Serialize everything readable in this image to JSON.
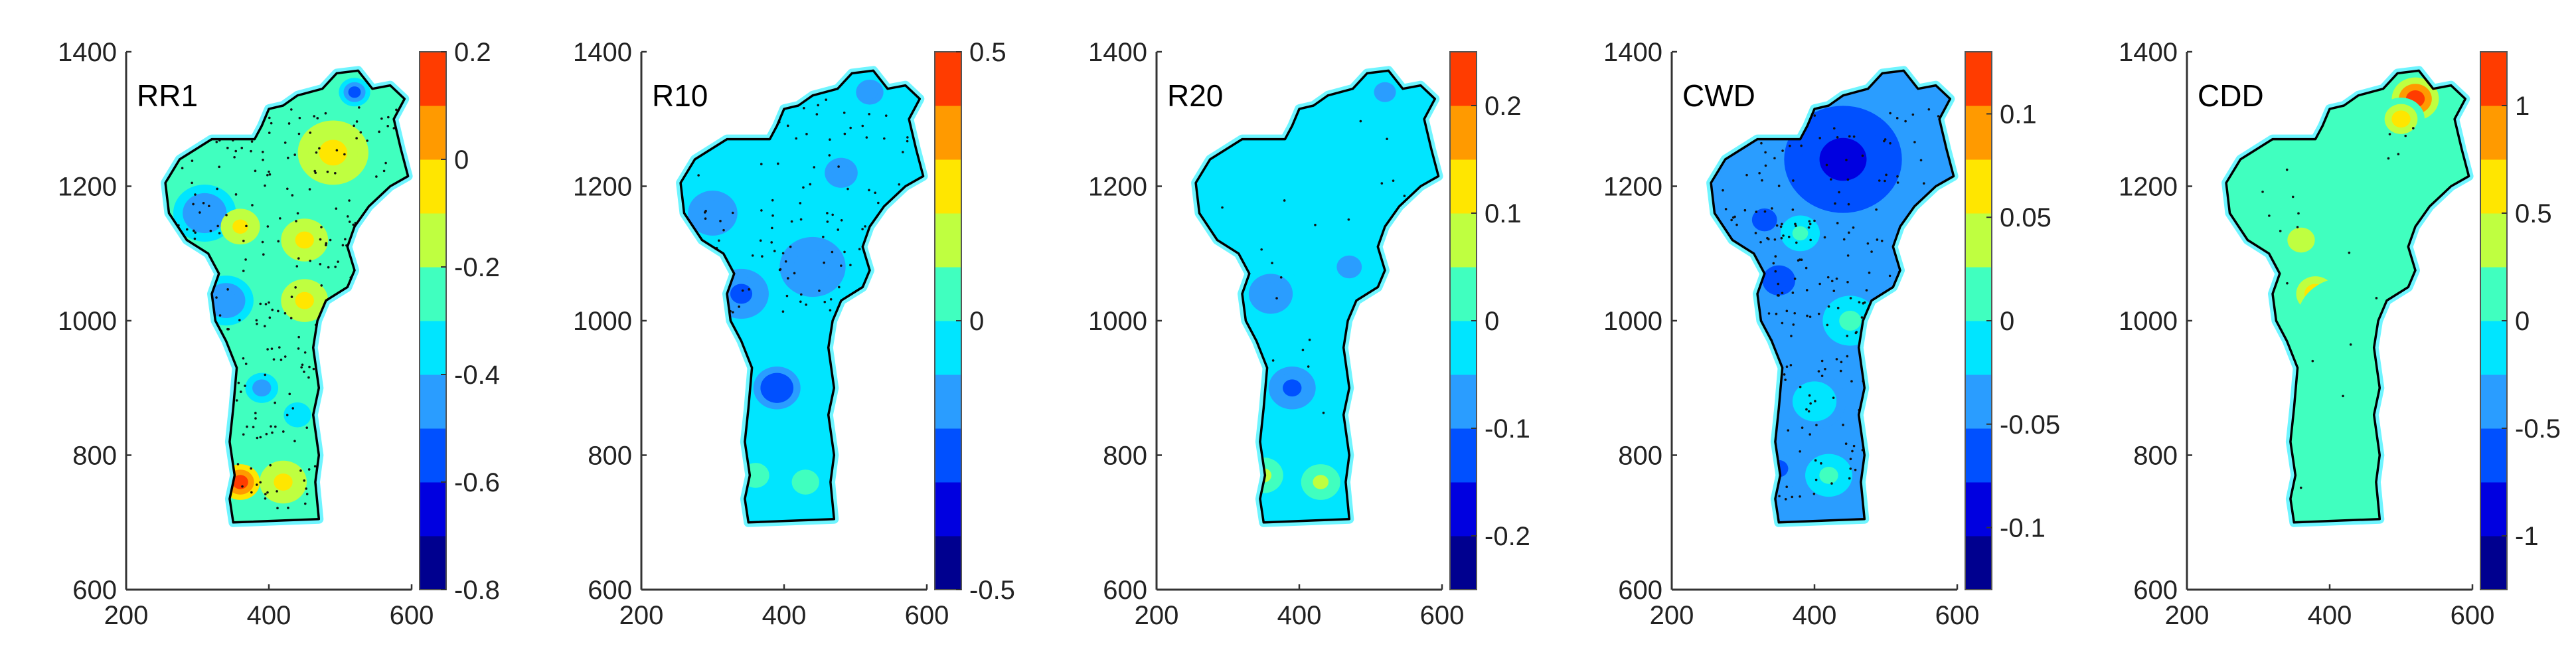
{
  "chart_data": [
    {
      "type": "heatmap",
      "title": "RR1",
      "x_ticks": [
        200,
        400,
        600
      ],
      "y_ticks": [
        600,
        800,
        1000,
        1200,
        1400
      ],
      "xlim": [
        200,
        600
      ],
      "ylim": [
        600,
        1400
      ],
      "colorbar": {
        "min": -0.8,
        "max": 0.2,
        "tick_values": [
          0.2,
          0,
          -0.2,
          -0.4,
          -0.6,
          -0.8
        ],
        "tick_labels": [
          "0.2",
          "0",
          "-0.2",
          "-0.4",
          "-0.6",
          "-0.8"
        ]
      },
      "background_value": -0.22,
      "stippling": "dense",
      "features": [
        {
          "x": 310,
          "y": 1160,
          "r": 40,
          "value": -0.5
        },
        {
          "x": 490,
          "y": 1250,
          "r": 45,
          "value": -0.05
        },
        {
          "x": 360,
          "y": 1140,
          "r": 25,
          "value": -0.1
        },
        {
          "x": 450,
          "y": 1120,
          "r": 30,
          "value": -0.1
        },
        {
          "x": 340,
          "y": 1030,
          "r": 35,
          "value": -0.5
        },
        {
          "x": 450,
          "y": 1030,
          "r": 30,
          "value": -0.05
        },
        {
          "x": 390,
          "y": 900,
          "r": 30,
          "value": -0.45
        },
        {
          "x": 440,
          "y": 860,
          "r": 25,
          "value": -0.4
        },
        {
          "x": 360,
          "y": 760,
          "r": 25,
          "value": 0.15
        },
        {
          "x": 420,
          "y": 760,
          "r": 30,
          "value": -0.05
        },
        {
          "x": 520,
          "y": 1340,
          "r": 20,
          "value": -0.55
        }
      ]
    },
    {
      "type": "heatmap",
      "title": "R10",
      "x_ticks": [
        200,
        400,
        600
      ],
      "y_ticks": [
        600,
        800,
        1000,
        1200,
        1400
      ],
      "xlim": [
        200,
        600
      ],
      "ylim": [
        600,
        1400
      ],
      "colorbar": {
        "min": -0.5,
        "max": 0.5,
        "tick_values": [
          0.5,
          0,
          -0.5
        ],
        "tick_labels": [
          "0.5",
          "0",
          "-0.5"
        ]
      },
      "background_value": -0.05,
      "stippling": "partial",
      "features": [
        {
          "x": 300,
          "y": 1160,
          "r": 45,
          "value": -0.15
        },
        {
          "x": 440,
          "y": 1080,
          "r": 60,
          "value": -0.15
        },
        {
          "x": 390,
          "y": 900,
          "r": 30,
          "value": -0.3
        },
        {
          "x": 340,
          "y": 1040,
          "r": 35,
          "value": -0.25
        },
        {
          "x": 480,
          "y": 1220,
          "r": 30,
          "value": -0.15
        },
        {
          "x": 520,
          "y": 1340,
          "r": 25,
          "value": -0.2
        },
        {
          "x": 360,
          "y": 770,
          "r": 25,
          "value": 0.08
        },
        {
          "x": 430,
          "y": 760,
          "r": 25,
          "value": 0.05
        }
      ]
    },
    {
      "type": "heatmap",
      "title": "R20",
      "x_ticks": [
        200,
        400,
        600
      ],
      "y_ticks": [
        600,
        800,
        1000,
        1200,
        1400
      ],
      "xlim": [
        200,
        600
      ],
      "ylim": [
        600,
        1400
      ],
      "colorbar": {
        "min": -0.25,
        "max": 0.25,
        "tick_values": [
          0.2,
          0.1,
          0,
          -0.1,
          -0.2
        ],
        "tick_labels": [
          "0.2",
          "0.1",
          "0",
          "-0.1",
          "-0.2"
        ]
      },
      "background_value": -0.01,
      "stippling": "sparse",
      "features": [
        {
          "x": 360,
          "y": 1040,
          "r": 40,
          "value": -0.1
        },
        {
          "x": 390,
          "y": 900,
          "r": 30,
          "value": -0.14
        },
        {
          "x": 470,
          "y": 1080,
          "r": 40,
          "value": -0.06
        },
        {
          "x": 350,
          "y": 770,
          "r": 25,
          "value": 0.06
        },
        {
          "x": 430,
          "y": 760,
          "r": 25,
          "value": 0.06
        },
        {
          "x": 520,
          "y": 1340,
          "r": 20,
          "value": -0.08
        }
      ]
    },
    {
      "type": "heatmap",
      "title": "CWD",
      "x_ticks": [
        200,
        400,
        600
      ],
      "y_ticks": [
        600,
        800,
        1000,
        1200,
        1400
      ],
      "xlim": [
        200,
        600
      ],
      "ylim": [
        600,
        1400
      ],
      "colorbar": {
        "min": -0.13,
        "max": 0.13,
        "tick_values": [
          0.1,
          0.05,
          0,
          -0.05,
          -0.1
        ],
        "tick_labels": [
          "0.1",
          "0.05",
          "0",
          "-0.05",
          "-0.1"
        ]
      },
      "background_value": -0.03,
      "stippling": "dense",
      "features": [
        {
          "x": 440,
          "y": 1240,
          "r": 75,
          "value": -0.1
        },
        {
          "x": 330,
          "y": 1150,
          "r": 40,
          "value": -0.06
        },
        {
          "x": 380,
          "y": 1130,
          "r": 25,
          "value": 0.0
        },
        {
          "x": 350,
          "y": 1060,
          "r": 30,
          "value": -0.07
        },
        {
          "x": 450,
          "y": 1000,
          "r": 35,
          "value": 0.0
        },
        {
          "x": 400,
          "y": 880,
          "r": 40,
          "value": -0.02
        },
        {
          "x": 350,
          "y": 780,
          "r": 30,
          "value": -0.06
        },
        {
          "x": 420,
          "y": 770,
          "r": 30,
          "value": 0.0
        }
      ]
    },
    {
      "type": "heatmap",
      "title": "CDD",
      "x_ticks": [
        200,
        400,
        600
      ],
      "y_ticks": [
        600,
        800,
        1000,
        1200,
        1400
      ],
      "xlim": [
        200,
        600
      ],
      "ylim": [
        600,
        1400
      ],
      "colorbar": {
        "min": -1.25,
        "max": 1.25,
        "tick_values": [
          1,
          0.5,
          0,
          -0.5,
          -1
        ],
        "tick_labels": [
          "1",
          "0.5",
          "0",
          "-0.5",
          "-1"
        ]
      },
      "background_value": 0.05,
      "stippling": "sparse",
      "features": [
        {
          "x": 520,
          "y": 1330,
          "r": 30,
          "value": 1.1
        },
        {
          "x": 500,
          "y": 1300,
          "r": 30,
          "value": 0.5
        },
        {
          "x": 380,
          "y": 1040,
          "r": 35,
          "value": 0.55
        },
        {
          "x": 420,
          "y": 1000,
          "r": 60,
          "value": 0.2
        },
        {
          "x": 420,
          "y": 880,
          "r": 55,
          "value": 0.2
        },
        {
          "x": 360,
          "y": 1120,
          "r": 25,
          "value": 0.4
        },
        {
          "x": 460,
          "y": 770,
          "r": 25,
          "value": 0.2
        }
      ]
    }
  ]
}
